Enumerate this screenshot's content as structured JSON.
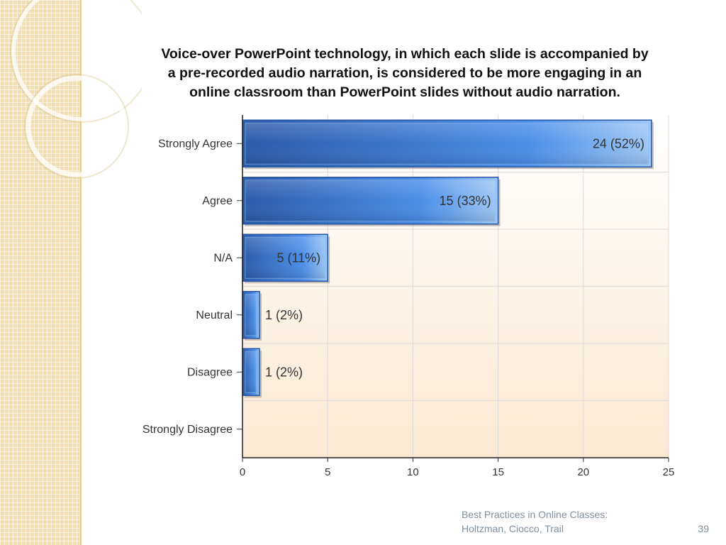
{
  "chart_data": {
    "type": "bar",
    "orientation": "horizontal",
    "title": "Voice-over PowerPoint technology, in which each slide is accompanied by\na pre-recorded audio narration, is considered to be more engaging in an\nonline classroom than PowerPoint slides without audio narration.",
    "categories": [
      "Strongly Agree",
      "Agree",
      "N/A",
      "Neutral",
      "Disagree",
      "Strongly Disagree"
    ],
    "values": [
      24,
      15,
      5,
      1,
      1,
      0
    ],
    "data_labels": [
      "24 (52%)",
      "15 (33%)",
      "5 (11%)",
      "1 (2%)",
      "1 (2%)",
      ""
    ],
    "xlim": [
      0,
      25
    ],
    "x_ticks": [
      0,
      5,
      10,
      15,
      20,
      25
    ],
    "x_tick_labels": [
      "0",
      "5",
      "10",
      "15",
      "20",
      "25"
    ],
    "grid": true,
    "colors": {
      "bar_dark": "#2b5aa8",
      "bar_light": "#4a8ee8",
      "bar_highlight": "#9ec8f5",
      "plot_bg_top": "#ffffff",
      "plot_bg_bottom": "#fbe9d3",
      "grid": "#dcdcdc"
    }
  },
  "footer": {
    "citation": "Best Practices in Online Classes:\nHoltzman, Ciocco, Trail",
    "page_number": "39"
  },
  "theme": {
    "side_panel_color": "#f2dfb0",
    "footer_text_color": "#7f8e9c"
  }
}
